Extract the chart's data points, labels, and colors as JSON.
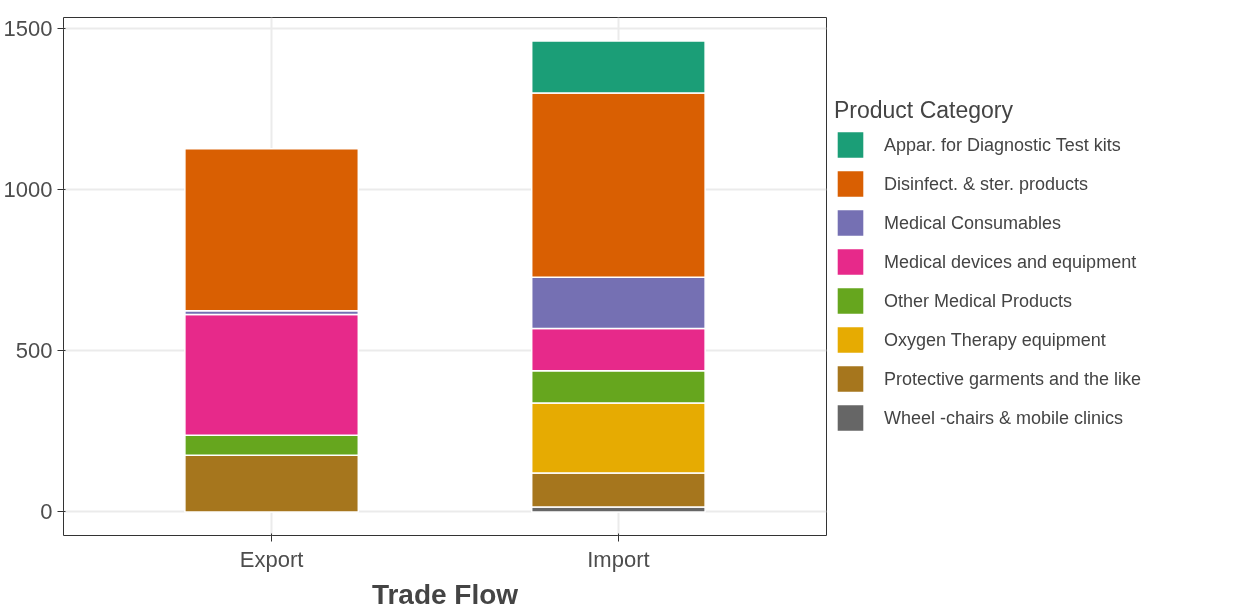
{
  "chart_data": {
    "type": "bar",
    "stacked": true,
    "xlabel": "Trade Flow",
    "legend_title": "Product Category",
    "categories": [
      "Export",
      "Import"
    ],
    "series": [
      {
        "name": "Wheel -chairs & mobile clinics",
        "color": "#666666",
        "values": [
          null,
          15
        ]
      },
      {
        "name": "Protective garments and the like",
        "color": "#a6761d",
        "values": [
          176,
          106
        ]
      },
      {
        "name": "Oxygen Therapy equipment",
        "color": "#e6ab02",
        "values": [
          null,
          217
        ]
      },
      {
        "name": "Other Medical Products",
        "color": "#66a61e",
        "values": [
          62,
          100
        ]
      },
      {
        "name": "Medical devices and equipment",
        "color": "#e7298a",
        "values": [
          374,
          131
        ]
      },
      {
        "name": "Medical Consumables",
        "color": "#7570b3",
        "values": [
          12,
          159
        ]
      },
      {
        "name": "Disinfect. & ster. products",
        "color": "#d95f02",
        "values": [
          502,
          571
        ]
      },
      {
        "name": "Appar. for Diagnostic Test kits",
        "color": "#1b9e77",
        "values": [
          null,
          161
        ]
      }
    ],
    "ylim": [
      -73,
      1533
    ],
    "yticks": [
      0,
      500,
      1000,
      1500
    ],
    "grid": true,
    "legend": "right"
  }
}
